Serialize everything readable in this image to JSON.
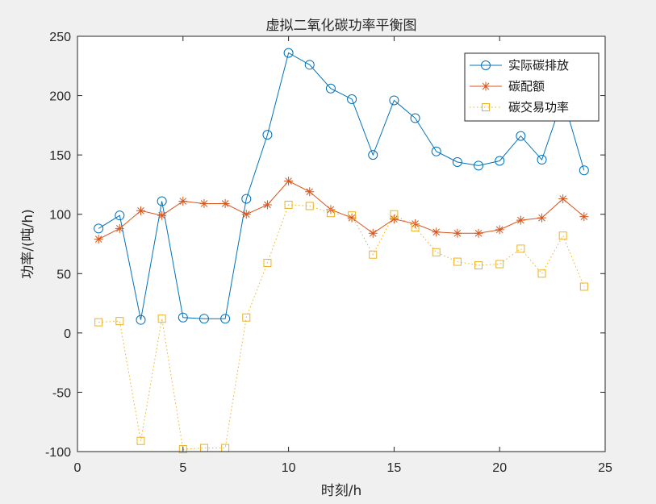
{
  "chart_data": {
    "type": "line",
    "title": "虚拟二氧化碳功率平衡图",
    "xlabel": "时刻/h",
    "ylabel": "功率/(吨/h)",
    "xlim": [
      0,
      25
    ],
    "ylim": [
      -100,
      250
    ],
    "xticks": [
      0,
      5,
      10,
      15,
      20,
      25
    ],
    "yticks": [
      -100,
      -50,
      0,
      50,
      100,
      150,
      200,
      250
    ],
    "grid": false,
    "legend_position": "top-right",
    "x": [
      1,
      2,
      3,
      4,
      5,
      6,
      7,
      8,
      9,
      10,
      11,
      12,
      13,
      14,
      15,
      16,
      17,
      18,
      19,
      20,
      21,
      22,
      23,
      24
    ],
    "series": [
      {
        "name": "实际碳排放",
        "color": "#0072bd",
        "marker": "circle",
        "line_style": "solid",
        "values": [
          88,
          99,
          11,
          111,
          13,
          12,
          12,
          113,
          167,
          236,
          226,
          206,
          197,
          150,
          196,
          181,
          153,
          144,
          141,
          145,
          166,
          146,
          198,
          137
        ]
      },
      {
        "name": "碳配额",
        "color": "#d95319",
        "marker": "asterisk",
        "line_style": "solid",
        "values": [
          79,
          88,
          103,
          99,
          111,
          109,
          109,
          100,
          108,
          128,
          119,
          104,
          97,
          84,
          96,
          92,
          85,
          84,
          84,
          87,
          95,
          97,
          113,
          98
        ]
      },
      {
        "name": "碳交易功率",
        "color": "#edb120",
        "marker": "square",
        "line_style": "dotted",
        "values": [
          9,
          10,
          -91,
          12,
          -98,
          -97,
          -97,
          13,
          59,
          108,
          107,
          101,
          99,
          66,
          100,
          89,
          68,
          60,
          57,
          58,
          71,
          50,
          82,
          39
        ]
      }
    ]
  }
}
